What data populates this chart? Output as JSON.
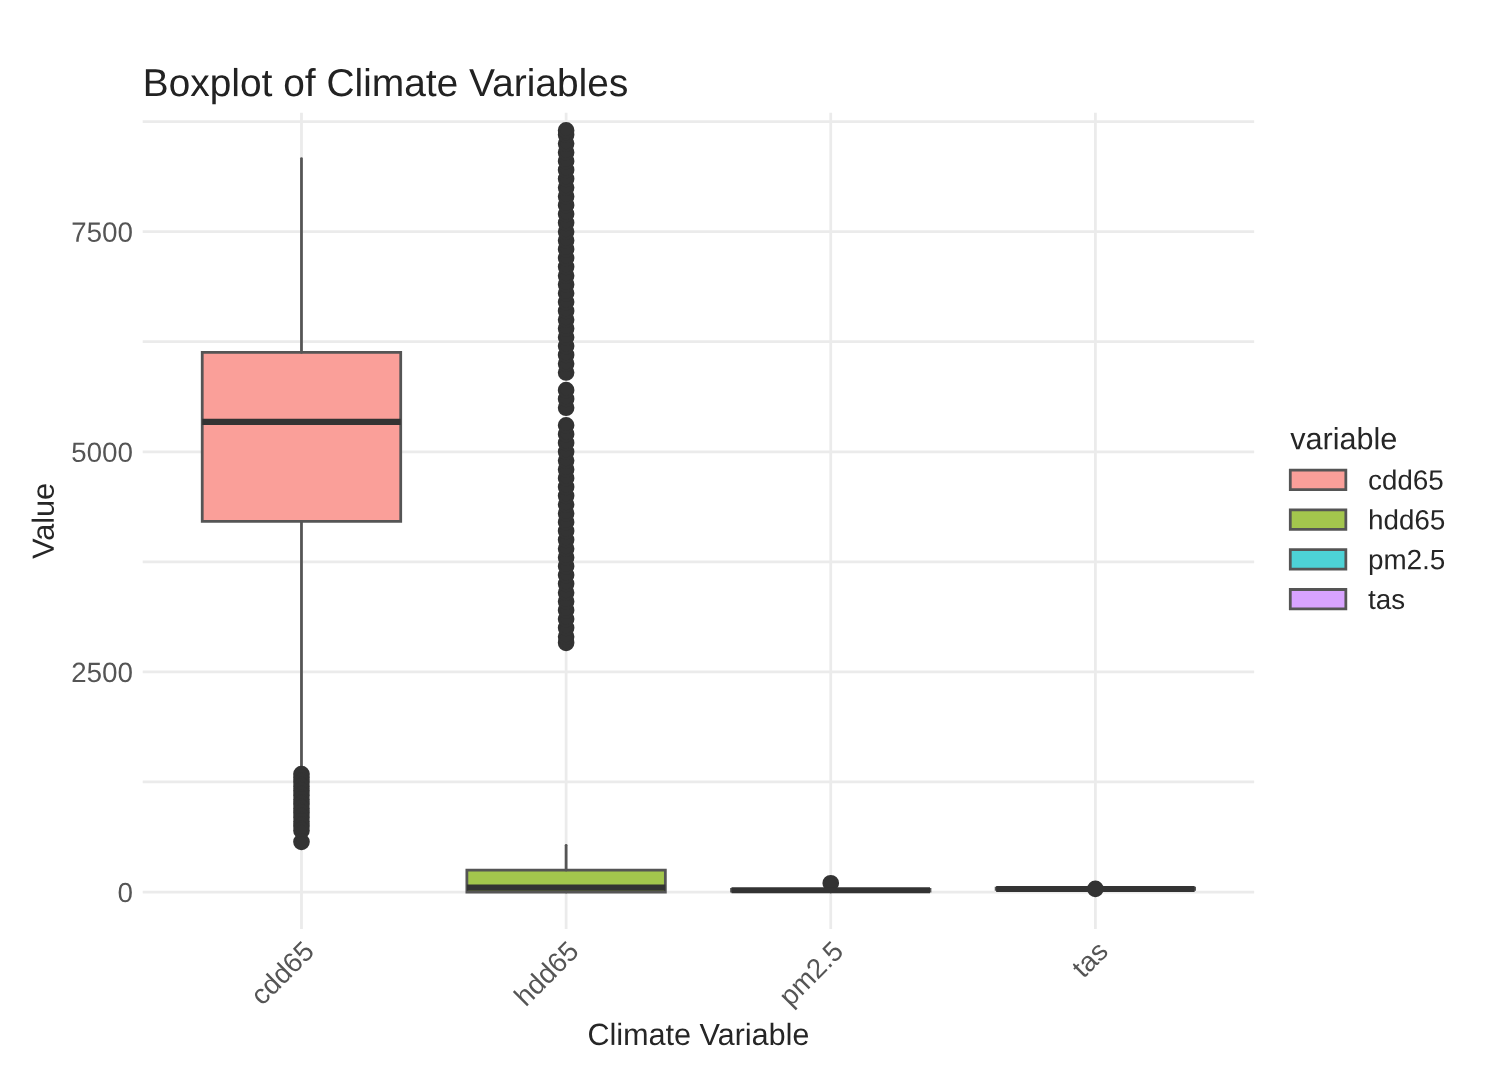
{
  "chart_data": {
    "type": "box",
    "title": "Boxplot of Climate Variables",
    "xlabel": "Climate Variable",
    "ylabel": "Value",
    "legend_title": "variable",
    "categories": [
      "cdd65",
      "hdd65",
      "pm2.5",
      "tas"
    ],
    "series": [
      {
        "name": "cdd65",
        "color": "#fa9f99",
        "boxes": [
          {
            "low": 1400,
            "q1": 4210,
            "median": 5340,
            "q3": 6130,
            "high": 8330,
            "outliers": [
              1340,
              1300,
              1250,
              1200,
              1150,
              1100,
              1050,
              1000,
              950,
              900,
              850,
              800,
              750,
              700,
              570
            ]
          },
          null,
          null,
          null
        ]
      },
      {
        "name": "hdd65",
        "color": "#a3c64d",
        "boxes": [
          null,
          {
            "low": 0,
            "q1": 0,
            "median": 50,
            "q3": 250,
            "high": 530,
            "outliers": [
              2830,
              2900,
              3000,
              3100,
              3200,
              3300,
              3400,
              3500,
              3600,
              3700,
              3800,
              3900,
              4000,
              4100,
              4200,
              4300,
              4400,
              4500,
              4600,
              4700,
              4800,
              4900,
              5000,
              5100,
              5200,
              5300,
              5500,
              5600,
              5700,
              5900,
              6000,
              6100,
              6200,
              6300,
              6400,
              6500,
              6600,
              6700,
              6800,
              6900,
              7000,
              7100,
              7200,
              7300,
              7400,
              7500,
              7600,
              7700,
              7800,
              7900,
              8000,
              8100,
              8200,
              8300,
              8400,
              8500,
              8600,
              8650
            ]
          },
          null,
          null
        ]
      },
      {
        "name": "pm2.5",
        "color": "#4dd2d6",
        "boxes": [
          null,
          null,
          {
            "low": 0,
            "q1": 10,
            "median": 20,
            "q3": 30,
            "high": 50,
            "outliers": [
              100
            ]
          },
          null
        ]
      },
      {
        "name": "tas",
        "color": "#d8a3ff",
        "boxes": [
          null,
          null,
          null,
          {
            "low": 20,
            "q1": 30,
            "median": 35,
            "q3": 45,
            "high": 60,
            "outliers": [
              35
            ]
          }
        ]
      }
    ],
    "ylim": [
      -420,
      8850
    ],
    "yticks": [
      0,
      {
        "value": 1250,
        "label": null
      },
      2500,
      {
        "value": 3750,
        "label": null
      },
      5000,
      {
        "value": 6250,
        "label": null
      },
      7500,
      {
        "value": 8750,
        "label": null
      }
    ],
    "grid": true,
    "legend": "right"
  }
}
